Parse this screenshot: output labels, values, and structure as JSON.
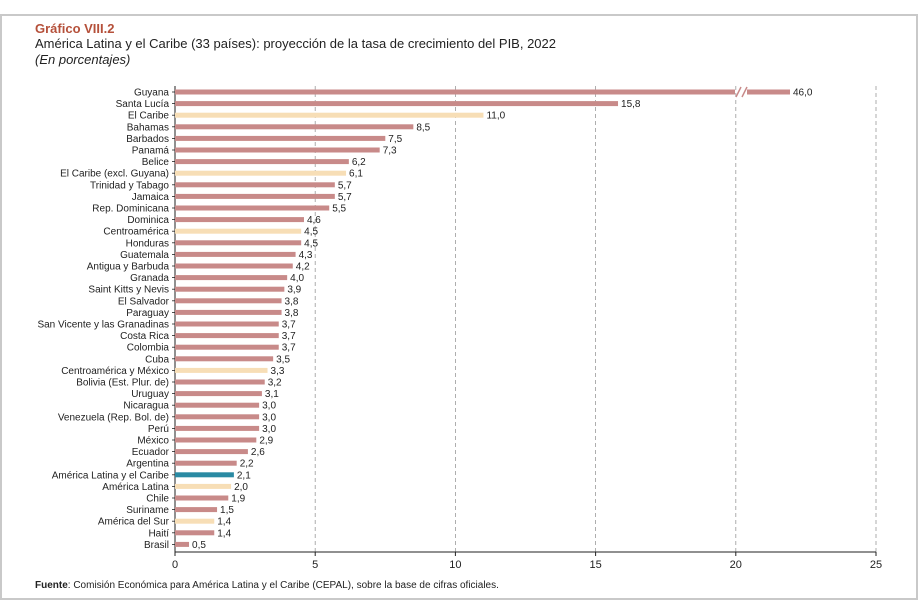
{
  "header": {
    "figure_label": "Gráfico VIII.2",
    "title": "América Latina y el Caribe (33 países): proyección de la tasa de crecimiento del PIB, 2022",
    "subtitle": "(En porcentajes)"
  },
  "footer": {
    "source_label": "Fuente",
    "source_text": ": Comisión Económica para América Latina y el Caribe (CEPAL), sobre la base de cifras oficiales."
  },
  "colors": {
    "country": "#c88a89",
    "aggregate": "#f7deb6",
    "highlight": "#2a8aa3",
    "grid": "#9a9a9a",
    "axis": "#222222"
  },
  "chart_data": {
    "type": "bar",
    "orientation": "horizontal",
    "xlim": [
      0,
      25
    ],
    "xticks": [
      0,
      5,
      10,
      15,
      20,
      25
    ],
    "axis_break": "Guyana bar is truncated with a break mark; value 46,0",
    "categories": [
      "Guyana",
      "Santa Lucía",
      "El Caribe",
      "Bahamas",
      "Barbados",
      "Panamá",
      "Belice",
      "El Caribe (excl. Guyana)",
      "Trinidad y Tabago",
      "Jamaica",
      "Rep. Dominicana",
      "Dominica",
      "Centroamérica",
      "Honduras",
      "Guatemala",
      "Antigua y Barbuda",
      "Granada",
      "Saint Kitts y Nevis",
      "El Salvador",
      "Paraguay",
      "San Vicente y las Granadinas",
      "Costa Rica",
      "Colombia",
      "Cuba",
      "Centroamérica y México",
      "Bolivia (Est. Plur. de)",
      "Uruguay",
      "Nicaragua",
      "Venezuela (Rep. Bol. de)",
      "Perú",
      "México",
      "Ecuador",
      "Argentina",
      "América Latina y el Caribe",
      "América Latina",
      "Chile",
      "Suriname",
      "América del Sur",
      "Haití",
      "Brasil"
    ],
    "values": [
      46.0,
      15.8,
      11.0,
      8.5,
      7.5,
      7.3,
      6.2,
      6.1,
      5.7,
      5.7,
      5.5,
      4.6,
      4.5,
      4.5,
      4.3,
      4.2,
      4.0,
      3.9,
      3.8,
      3.8,
      3.7,
      3.7,
      3.7,
      3.5,
      3.3,
      3.2,
      3.1,
      3.0,
      3.0,
      3.0,
      2.9,
      2.6,
      2.2,
      2.1,
      2.0,
      1.9,
      1.5,
      1.4,
      1.4,
      0.5
    ],
    "labels": [
      "46,0",
      "15,8",
      "11,0",
      "8,5",
      "7,5",
      "7,3",
      "6,2",
      "6,1",
      "5,7",
      "5,7",
      "5,5",
      "4,6",
      "4,5",
      "4,5",
      "4,3",
      "4,2",
      "4,0",
      "3,9",
      "3,8",
      "3,8",
      "3,7",
      "3,7",
      "3,7",
      "3,5",
      "3,3",
      "3,2",
      "3,1",
      "3,0",
      "3,0",
      "3,0",
      "2,9",
      "2,6",
      "2,2",
      "2,1",
      "2,0",
      "1,9",
      "1,5",
      "1,4",
      "1,4",
      "0,5"
    ],
    "group": [
      "country",
      "country",
      "aggregate",
      "country",
      "country",
      "country",
      "country",
      "aggregate",
      "country",
      "country",
      "country",
      "country",
      "aggregate",
      "country",
      "country",
      "country",
      "country",
      "country",
      "country",
      "country",
      "country",
      "country",
      "country",
      "country",
      "aggregate",
      "country",
      "country",
      "country",
      "country",
      "country",
      "country",
      "country",
      "country",
      "highlight",
      "aggregate",
      "country",
      "country",
      "aggregate",
      "country",
      "country"
    ]
  }
}
